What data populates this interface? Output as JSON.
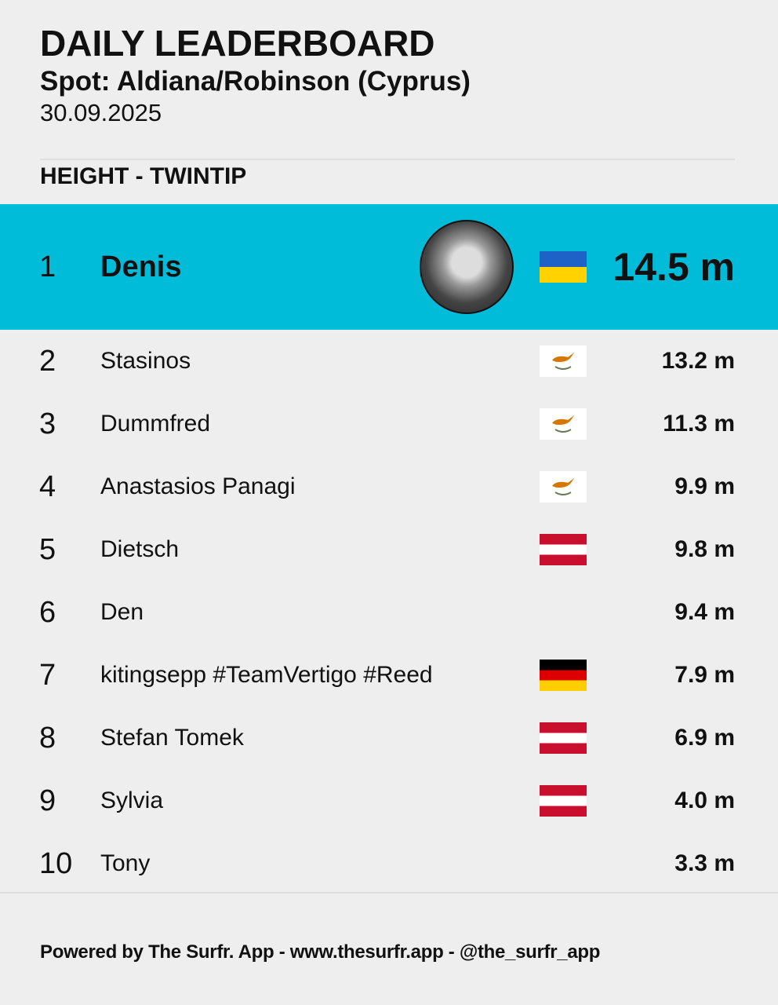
{
  "header": {
    "title": "DAILY LEADERBOARD",
    "spot": "Spot: Aldiana/Robinson (Cyprus)",
    "date": "30.09.2025",
    "category": "HEIGHT - TWINTIP"
  },
  "accent_color": "#00bcd9",
  "rows": [
    {
      "rank": "1",
      "name": "Denis",
      "value": "14.5 m",
      "flag": "ua",
      "avatar": true
    },
    {
      "rank": "2",
      "name": "Stasinos",
      "value": "13.2 m",
      "flag": "cy"
    },
    {
      "rank": "3",
      "name": "Dummfred",
      "value": "11.3 m",
      "flag": "cy"
    },
    {
      "rank": "4",
      "name": "Anastasios Panagi",
      "value": "9.9 m",
      "flag": "cy"
    },
    {
      "rank": "5",
      "name": "Dietsch",
      "value": "9.8 m",
      "flag": "at"
    },
    {
      "rank": "6",
      "name": "Den",
      "value": "9.4 m",
      "flag": ""
    },
    {
      "rank": "7",
      "name": "kitingsepp #TeamVertigo #Reed",
      "value": "7.9 m",
      "flag": "de"
    },
    {
      "rank": "8",
      "name": "Stefan Tomek",
      "value": "6.9 m",
      "flag": "at"
    },
    {
      "rank": "9",
      "name": "Sylvia",
      "value": "4.0 m",
      "flag": "at"
    },
    {
      "rank": "10",
      "name": "Tony",
      "value": "3.3 m",
      "flag": ""
    }
  ],
  "footer": "Powered by The Surfr. App - www.thesurfr.app - @the_surfr_app"
}
